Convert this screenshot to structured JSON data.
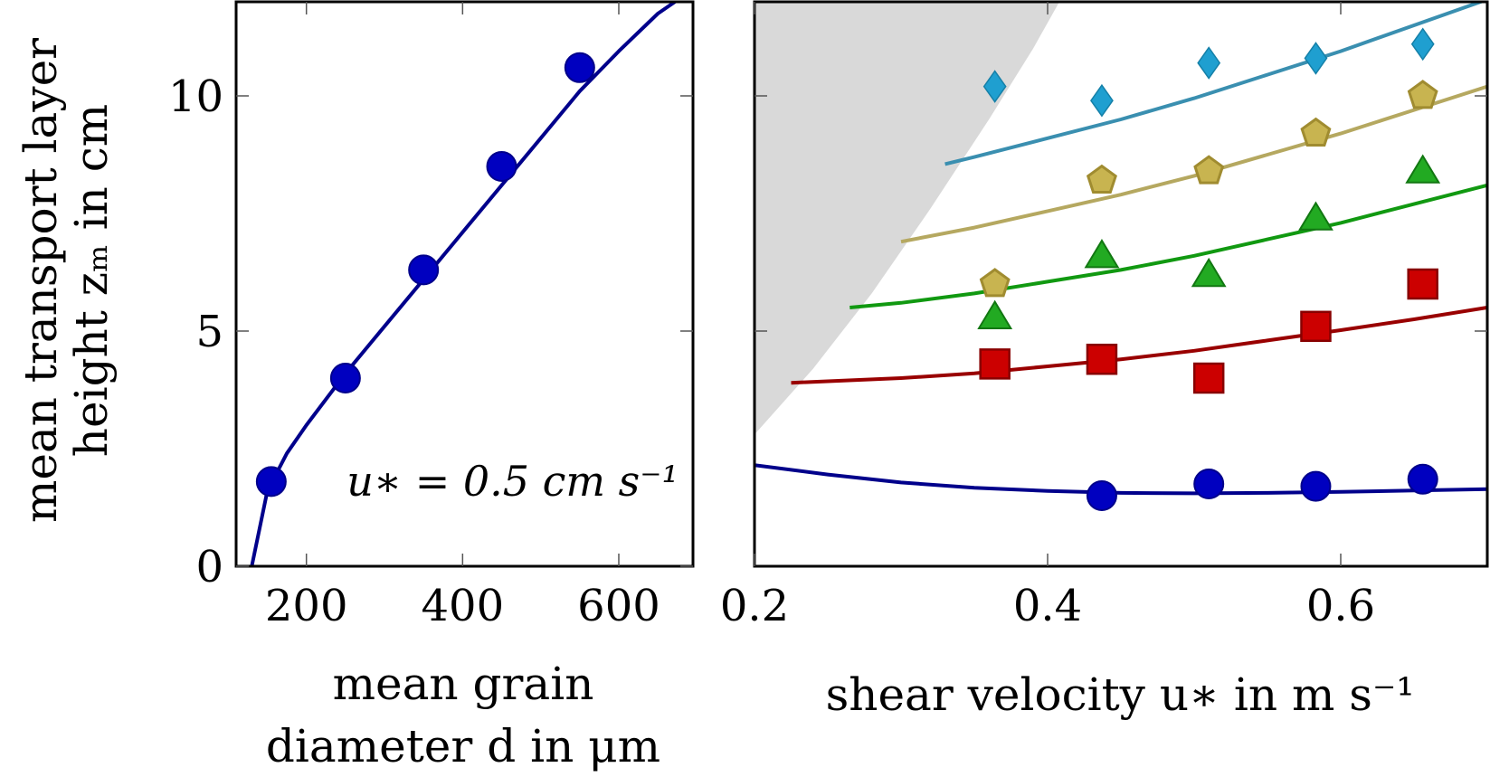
{
  "y_axis_title_line1": "mean transport layer",
  "y_axis_title_line2": "height zₘ in cm",
  "chart_data": [
    {
      "type": "scatter",
      "title": "",
      "xlabel_line1": "mean grain",
      "xlabel_line2": "diameter d in μm",
      "ylabel": "mean transport layer height zₘ in cm",
      "xlim": [
        110,
        695
      ],
      "ylim": [
        0,
        12
      ],
      "xticks": [
        200,
        400,
        600
      ],
      "yticks": [
        0,
        5,
        10
      ],
      "annotation": "u∗ = 0.5 cm s⁻¹",
      "grid": false,
      "series": [
        {
          "marker": "circle",
          "color": "#0000c0",
          "points": [
            {
              "x": 155,
              "y": 1.8
            },
            {
              "x": 250,
              "y": 4.0
            },
            {
              "x": 350,
              "y": 6.3
            },
            {
              "x": 450,
              "y": 8.5
            },
            {
              "x": 550,
              "y": 10.6
            }
          ],
          "fit_color": "#00008b",
          "fit": [
            {
              "x": 130,
              "y": 0.0
            },
            {
              "x": 150,
              "y": 1.6
            },
            {
              "x": 175,
              "y": 2.4
            },
            {
              "x": 200,
              "y": 3.0
            },
            {
              "x": 250,
              "y": 4.1
            },
            {
              "x": 300,
              "y": 5.1
            },
            {
              "x": 350,
              "y": 6.1
            },
            {
              "x": 400,
              "y": 7.1
            },
            {
              "x": 450,
              "y": 8.1
            },
            {
              "x": 500,
              "y": 9.1
            },
            {
              "x": 550,
              "y": 10.1
            },
            {
              "x": 600,
              "y": 10.95
            },
            {
              "x": 650,
              "y": 11.75
            },
            {
              "x": 672,
              "y": 12.0
            }
          ]
        }
      ]
    },
    {
      "type": "scatter",
      "title": "",
      "xlabel": "shear velocity u∗ in m s⁻¹",
      "xlim": [
        0.2,
        0.7
      ],
      "ylim": [
        0,
        12
      ],
      "xticks": [
        0.2,
        0.4,
        0.6
      ],
      "xtick_labels": [
        "0.2",
        "0.4",
        "0.6"
      ],
      "yticks_unlabeled": [
        5,
        10
      ],
      "grid": false,
      "shaded_region": {
        "color": "#d9d9d9",
        "boundary": [
          {
            "x": 0.2,
            "y": 2.8
          },
          {
            "x": 0.24,
            "y": 4.2
          },
          {
            "x": 0.28,
            "y": 5.8
          },
          {
            "x": 0.32,
            "y": 7.6
          },
          {
            "x": 0.36,
            "y": 9.5
          },
          {
            "x": 0.39,
            "y": 11.0
          },
          {
            "x": 0.408,
            "y": 12.0
          }
        ]
      },
      "series": [
        {
          "marker": "circle",
          "color": "#0000c0",
          "fit_color": "#00008b",
          "points": [
            {
              "x": 0.437,
              "y": 1.5
            },
            {
              "x": 0.51,
              "y": 1.75
            },
            {
              "x": 0.583,
              "y": 1.7
            },
            {
              "x": 0.656,
              "y": 1.85
            }
          ],
          "fit": [
            {
              "x": 0.2,
              "y": 2.15
            },
            {
              "x": 0.25,
              "y": 1.95
            },
            {
              "x": 0.3,
              "y": 1.78
            },
            {
              "x": 0.35,
              "y": 1.67
            },
            {
              "x": 0.4,
              "y": 1.6
            },
            {
              "x": 0.45,
              "y": 1.56
            },
            {
              "x": 0.5,
              "y": 1.55
            },
            {
              "x": 0.55,
              "y": 1.56
            },
            {
              "x": 0.6,
              "y": 1.58
            },
            {
              "x": 0.65,
              "y": 1.61
            },
            {
              "x": 0.7,
              "y": 1.64
            }
          ]
        },
        {
          "marker": "square",
          "color": "#cc0000",
          "fit_color": "#990000",
          "points": [
            {
              "x": 0.364,
              "y": 4.3
            },
            {
              "x": 0.437,
              "y": 4.4
            },
            {
              "x": 0.51,
              "y": 4.0
            },
            {
              "x": 0.583,
              "y": 5.1
            },
            {
              "x": 0.656,
              "y": 6.0
            }
          ],
          "fit": [
            {
              "x": 0.225,
              "y": 3.9
            },
            {
              "x": 0.3,
              "y": 4.0
            },
            {
              "x": 0.35,
              "y": 4.1
            },
            {
              "x": 0.4,
              "y": 4.25
            },
            {
              "x": 0.45,
              "y": 4.4
            },
            {
              "x": 0.5,
              "y": 4.58
            },
            {
              "x": 0.55,
              "y": 4.8
            },
            {
              "x": 0.6,
              "y": 5.02
            },
            {
              "x": 0.65,
              "y": 5.25
            },
            {
              "x": 0.7,
              "y": 5.5
            }
          ]
        },
        {
          "marker": "triangle",
          "color": "#22aa22",
          "fit_color": "#119911",
          "points": [
            {
              "x": 0.364,
              "y": 5.3
            },
            {
              "x": 0.437,
              "y": 6.6
            },
            {
              "x": 0.51,
              "y": 6.2
            },
            {
              "x": 0.583,
              "y": 7.4
            },
            {
              "x": 0.656,
              "y": 8.4
            }
          ],
          "fit": [
            {
              "x": 0.265,
              "y": 5.5
            },
            {
              "x": 0.3,
              "y": 5.6
            },
            {
              "x": 0.35,
              "y": 5.8
            },
            {
              "x": 0.4,
              "y": 6.05
            },
            {
              "x": 0.45,
              "y": 6.3
            },
            {
              "x": 0.5,
              "y": 6.6
            },
            {
              "x": 0.55,
              "y": 6.95
            },
            {
              "x": 0.6,
              "y": 7.3
            },
            {
              "x": 0.65,
              "y": 7.7
            },
            {
              "x": 0.7,
              "y": 8.1
            }
          ]
        },
        {
          "marker": "pentagon",
          "color": "#c8b450",
          "fit_color": "#b5a860",
          "points": [
            {
              "x": 0.364,
              "y": 6.0
            },
            {
              "x": 0.437,
              "y": 8.2
            },
            {
              "x": 0.51,
              "y": 8.4
            },
            {
              "x": 0.583,
              "y": 9.2
            },
            {
              "x": 0.656,
              "y": 10.0
            }
          ],
          "fit": [
            {
              "x": 0.3,
              "y": 6.9
            },
            {
              "x": 0.35,
              "y": 7.2
            },
            {
              "x": 0.4,
              "y": 7.55
            },
            {
              "x": 0.45,
              "y": 7.9
            },
            {
              "x": 0.5,
              "y": 8.3
            },
            {
              "x": 0.55,
              "y": 8.75
            },
            {
              "x": 0.6,
              "y": 9.2
            },
            {
              "x": 0.65,
              "y": 9.7
            },
            {
              "x": 0.7,
              "y": 10.2
            }
          ]
        },
        {
          "marker": "diamond",
          "color": "#1f9fd0",
          "fit_color": "#3a8fb0",
          "points": [
            {
              "x": 0.364,
              "y": 10.2
            },
            {
              "x": 0.437,
              "y": 9.9
            },
            {
              "x": 0.51,
              "y": 10.7
            },
            {
              "x": 0.583,
              "y": 10.8
            },
            {
              "x": 0.656,
              "y": 11.1
            }
          ],
          "fit": [
            {
              "x": 0.33,
              "y": 8.55
            },
            {
              "x": 0.35,
              "y": 8.7
            },
            {
              "x": 0.4,
              "y": 9.1
            },
            {
              "x": 0.45,
              "y": 9.5
            },
            {
              "x": 0.5,
              "y": 9.95
            },
            {
              "x": 0.55,
              "y": 10.45
            },
            {
              "x": 0.6,
              "y": 10.95
            },
            {
              "x": 0.65,
              "y": 11.5
            },
            {
              "x": 0.7,
              "y": 12.05
            }
          ]
        }
      ]
    }
  ]
}
